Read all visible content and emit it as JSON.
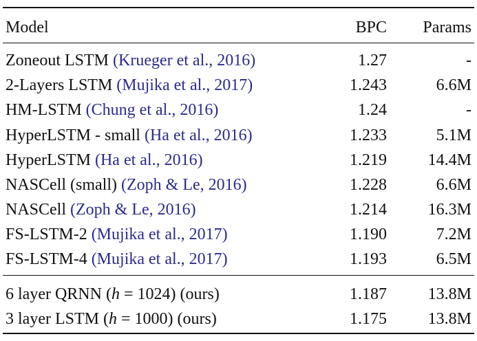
{
  "table": {
    "header": [
      "Model",
      "BPC",
      "Params"
    ],
    "rows": [
      {
        "model": "Zoneout LSTM ",
        "citation": "(Krueger et al., 2016)",
        "bpc": "1.27",
        "params": "-"
      },
      {
        "model": "2-Layers LSTM ",
        "citation": "(Mujika et al., 2017)",
        "bpc": "1.243",
        "params": "6.6M"
      },
      {
        "model": "HM-LSTM ",
        "citation": "(Chung et al., 2016)",
        "bpc": "1.24",
        "params": "-"
      },
      {
        "model": "HyperLSTM - small ",
        "citation": "(Ha et al., 2016)",
        "bpc": "1.233",
        "params": "5.1M"
      },
      {
        "model": "HyperLSTM ",
        "citation": "(Ha et al., 2016)",
        "bpc": "1.219",
        "params": "14.4M"
      },
      {
        "model": "NASCell (small) ",
        "citation": "(Zoph & Le, 2016)",
        "bpc": "1.228",
        "params": "6.6M"
      },
      {
        "model": "NASCell ",
        "citation": "(Zoph & Le, 2016)",
        "bpc": "1.214",
        "params": "16.3M"
      },
      {
        "model": "FS-LSTM-2 ",
        "citation": "(Mujika et al., 2017)",
        "bpc": "1.190",
        "params": "7.2M"
      },
      {
        "model": "FS-LSTM-4 ",
        "citation": "(Mujika et al., 2017)",
        "bpc": "1.193",
        "params": "6.5M"
      },
      {
        "model": "6 layer QRNN (",
        "variable": "h",
        "model_rest": " = 1024) (ours)",
        "bpc": "1.187",
        "params": "13.8M"
      },
      {
        "model": "3 layer LSTM (",
        "variable": "h",
        "model_rest": " = 1000) (ours)",
        "bpc": "1.175",
        "params": "13.8M"
      }
    ]
  }
}
